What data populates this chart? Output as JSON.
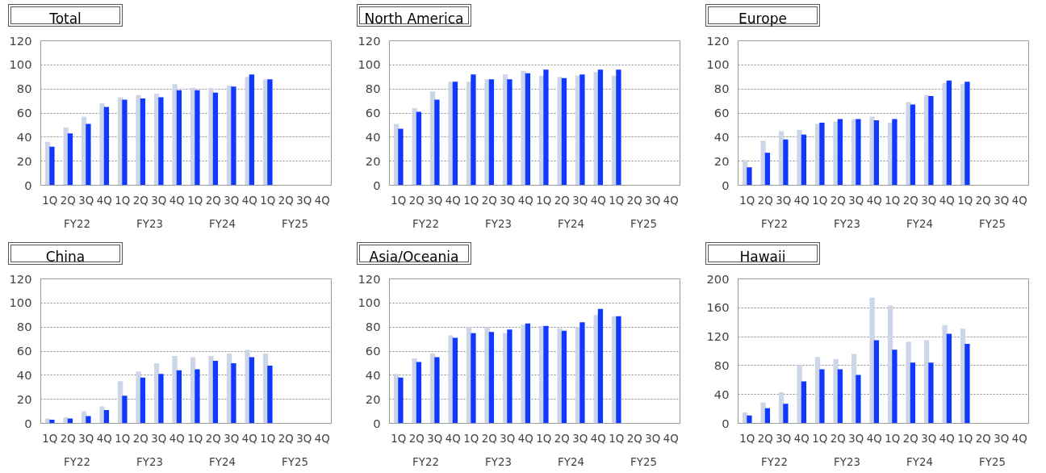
{
  "chart_data": [
    {
      "type": "bar",
      "title": "Total",
      "categories": [
        "1Q",
        "2Q",
        "3Q",
        "4Q",
        "1Q",
        "2Q",
        "3Q",
        "4Q",
        "1Q",
        "2Q",
        "3Q",
        "4Q",
        "1Q",
        "2Q",
        "3Q",
        "4Q"
      ],
      "annotations": [
        "FY22",
        "FY23",
        "FY24",
        "FY25"
      ],
      "ylim": [
        0,
        120
      ],
      "yticks": [
        0,
        20,
        40,
        60,
        80,
        100,
        120
      ],
      "grid": "y",
      "series": [
        {
          "color": "#cdd5e8",
          "values": [
            36,
            48,
            57,
            68,
            73,
            75,
            76,
            84,
            81,
            81,
            83,
            90,
            88,
            null,
            null,
            null
          ]
        },
        {
          "color": "#1038ff",
          "values": [
            32,
            43,
            51,
            65,
            71,
            72,
            73,
            79,
            79,
            77,
            82,
            92,
            88,
            null,
            null,
            null
          ]
        }
      ]
    },
    {
      "type": "bar",
      "title": "North America",
      "categories": [
        "1Q",
        "2Q",
        "3Q",
        "4Q",
        "1Q",
        "2Q",
        "3Q",
        "4Q",
        "1Q",
        "2Q",
        "3Q",
        "4Q",
        "1Q",
        "2Q",
        "3Q",
        "4Q"
      ],
      "annotations": [
        "FY22",
        "FY23",
        "FY24",
        "FY25"
      ],
      "ylim": [
        0,
        120
      ],
      "yticks": [
        0,
        20,
        40,
        60,
        80,
        100,
        120
      ],
      "grid": "y",
      "series": [
        {
          "color": "#cdd5e8",
          "values": [
            51,
            64,
            78,
            86,
            86,
            88,
            92,
            95,
            91,
            90,
            91,
            94,
            91,
            null,
            null,
            null
          ]
        },
        {
          "color": "#1038ff",
          "values": [
            47,
            61,
            71,
            86,
            92,
            88,
            88,
            93,
            96,
            89,
            92,
            96,
            96,
            null,
            null,
            null
          ]
        }
      ]
    },
    {
      "type": "bar",
      "title": "Europe",
      "categories": [
        "1Q",
        "2Q",
        "3Q",
        "4Q",
        "1Q",
        "2Q",
        "3Q",
        "4Q",
        "1Q",
        "2Q",
        "3Q",
        "4Q",
        "1Q",
        "2Q",
        "3Q",
        "4Q"
      ],
      "annotations": [
        "FY22",
        "FY23",
        "FY24",
        "FY25"
      ],
      "ylim": [
        0,
        120
      ],
      "yticks": [
        0,
        20,
        40,
        60,
        80,
        100,
        120
      ],
      "grid": "y",
      "series": [
        {
          "color": "#cdd5e8",
          "values": [
            21,
            37,
            45,
            46,
            51,
            53,
            55,
            57,
            52,
            69,
            75,
            85,
            84,
            null,
            null,
            null
          ]
        },
        {
          "color": "#1038ff",
          "values": [
            15,
            27,
            38,
            42,
            52,
            55,
            55,
            54,
            55,
            67,
            74,
            87,
            86,
            null,
            null,
            null
          ]
        }
      ]
    },
    {
      "type": "bar",
      "title": "China",
      "categories": [
        "1Q",
        "2Q",
        "3Q",
        "4Q",
        "1Q",
        "2Q",
        "3Q",
        "4Q",
        "1Q",
        "2Q",
        "3Q",
        "4Q",
        "1Q",
        "2Q",
        "3Q",
        "4Q"
      ],
      "annotations": [
        "FY22",
        "FY23",
        "FY24",
        "FY25"
      ],
      "ylim": [
        0,
        120
      ],
      "yticks": [
        0,
        20,
        40,
        60,
        80,
        100,
        120
      ],
      "grid": "y",
      "series": [
        {
          "color": "#cdd5e8",
          "values": [
            4,
            5,
            10,
            14,
            35,
            43,
            50,
            56,
            55,
            56,
            58,
            61,
            58,
            null,
            null,
            null
          ]
        },
        {
          "color": "#1038ff",
          "values": [
            3,
            4,
            6,
            11,
            23,
            38,
            41,
            44,
            45,
            52,
            50,
            55,
            48,
            null,
            null,
            null
          ]
        }
      ]
    },
    {
      "type": "bar",
      "title": "Asia/Oceania",
      "categories": [
        "1Q",
        "2Q",
        "3Q",
        "4Q",
        "1Q",
        "2Q",
        "3Q",
        "4Q",
        "1Q",
        "2Q",
        "3Q",
        "4Q",
        "1Q",
        "2Q",
        "3Q",
        "4Q"
      ],
      "annotations": [
        "FY22",
        "FY23",
        "FY24",
        "FY25"
      ],
      "ylim": [
        0,
        120
      ],
      "yticks": [
        0,
        20,
        40,
        60,
        80,
        100,
        120
      ],
      "grid": "y",
      "series": [
        {
          "color": "#cdd5e8",
          "values": [
            41,
            54,
            58,
            73,
            80,
            80,
            75,
            82,
            81,
            79,
            80,
            90,
            89,
            null,
            null,
            null
          ]
        },
        {
          "color": "#1038ff",
          "values": [
            38,
            51,
            55,
            71,
            75,
            76,
            78,
            83,
            81,
            77,
            84,
            95,
            89,
            null,
            null,
            null
          ]
        }
      ]
    },
    {
      "type": "bar",
      "title": "Hawaii",
      "categories": [
        "1Q",
        "2Q",
        "3Q",
        "4Q",
        "1Q",
        "2Q",
        "3Q",
        "4Q",
        "1Q",
        "2Q",
        "3Q",
        "4Q",
        "1Q",
        "2Q",
        "3Q",
        "4Q"
      ],
      "annotations": [
        "FY22",
        "FY23",
        "FY24",
        "FY25"
      ],
      "ylim": [
        0,
        200
      ],
      "yticks": [
        0,
        40,
        80,
        120,
        160,
        200
      ],
      "grid": "y",
      "series": [
        {
          "color": "#cdd5e8",
          "values": [
            15,
            29,
            43,
            81,
            92,
            89,
            96,
            174,
            163,
            113,
            115,
            136,
            131,
            null,
            null,
            null
          ]
        },
        {
          "color": "#1038ff",
          "values": [
            11,
            21,
            27,
            58,
            75,
            75,
            67,
            115,
            102,
            84,
            84,
            124,
            110,
            null,
            null,
            null
          ]
        }
      ]
    }
  ]
}
